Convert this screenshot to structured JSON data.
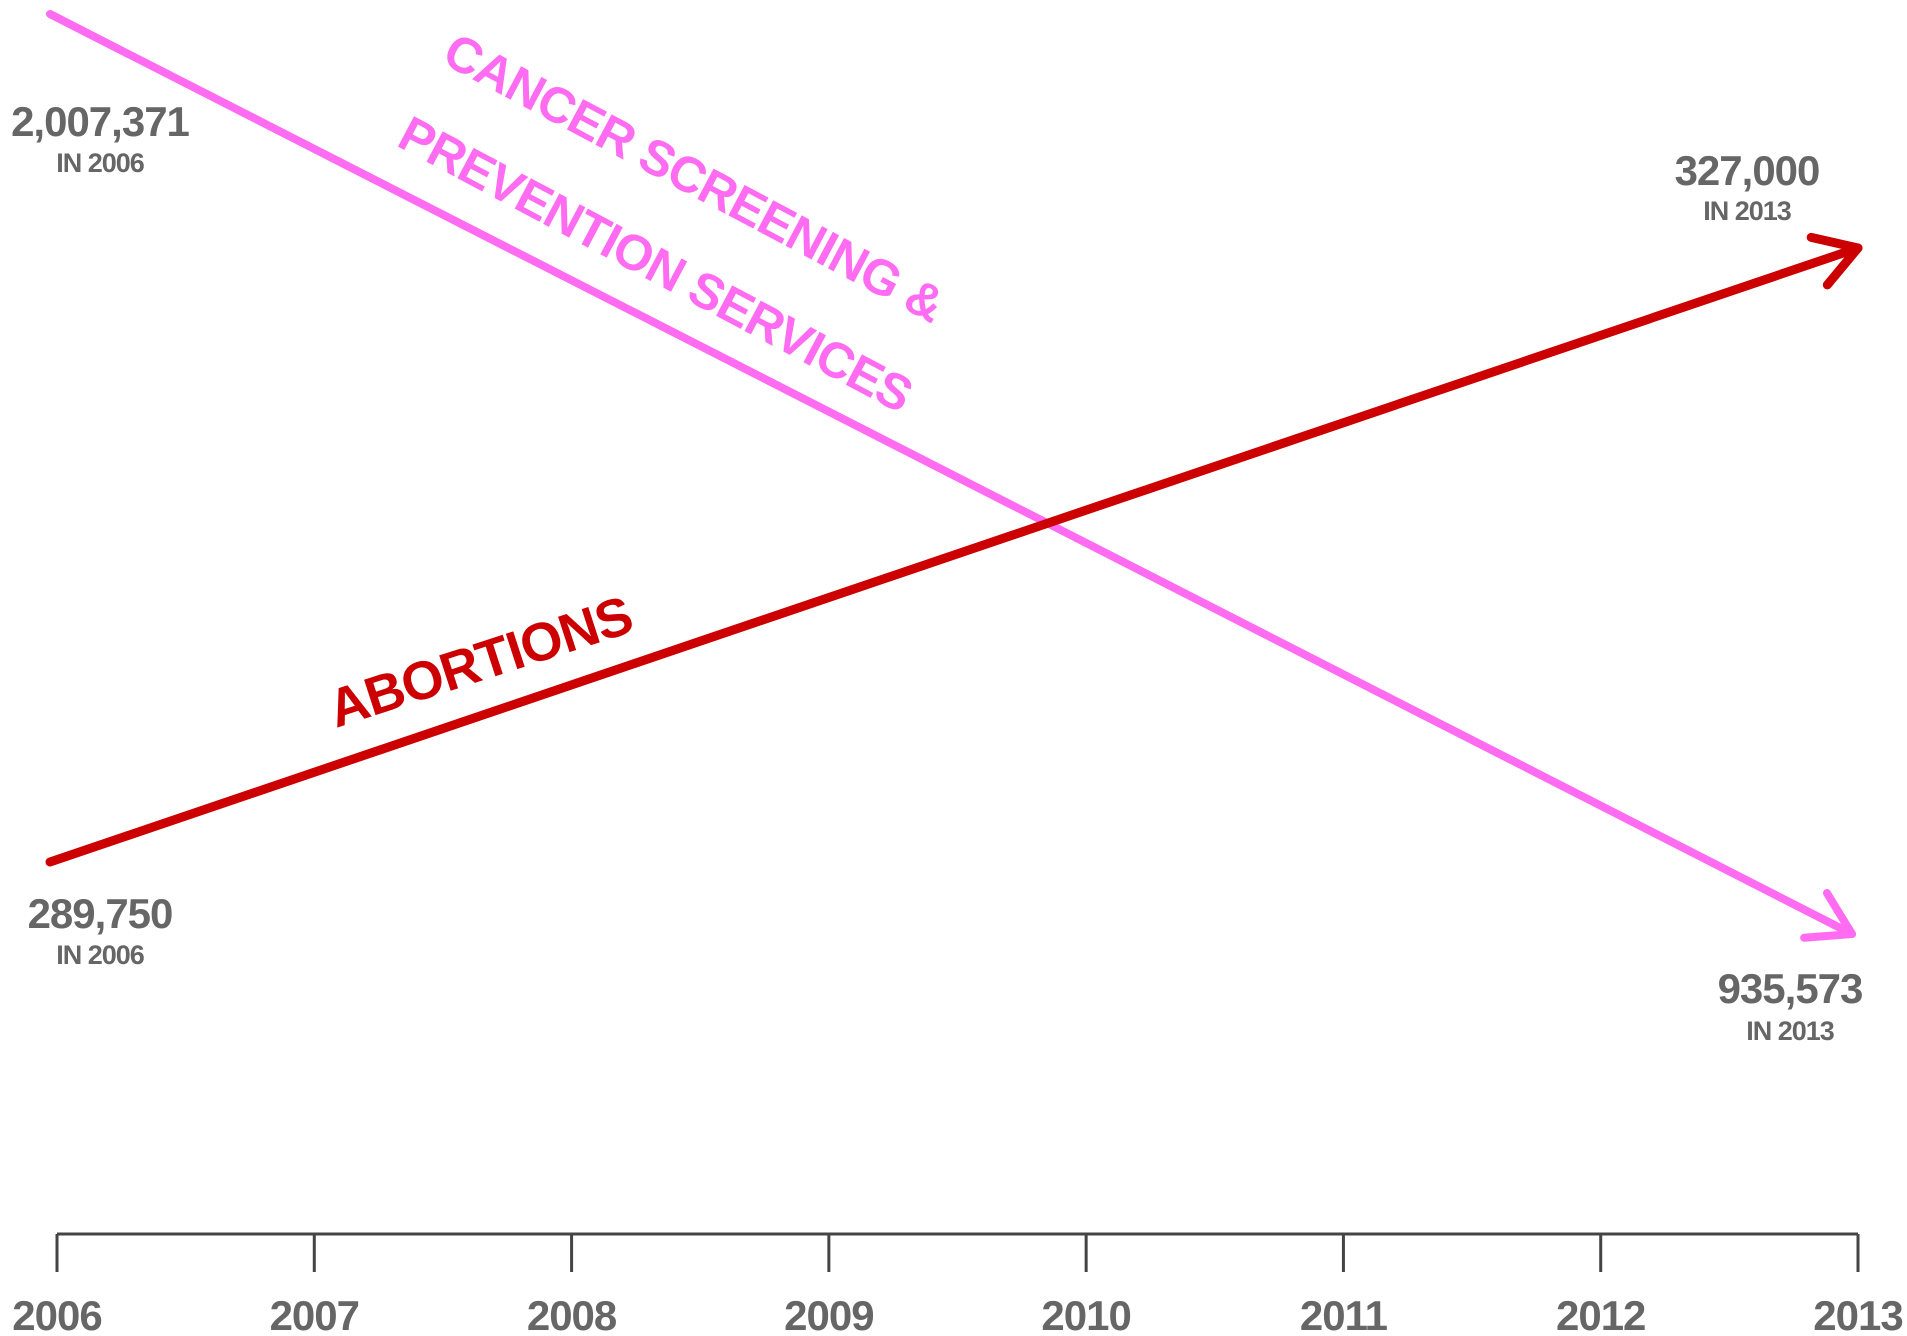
{
  "chart_data": {
    "type": "line",
    "x": [
      2006,
      2013
    ],
    "x_ticks": [
      "2006",
      "2007",
      "2008",
      "2009",
      "2010",
      "2011",
      "2012",
      "2013"
    ],
    "colors": {
      "cancer": "#ff6cf2",
      "abortions": "#cc0000",
      "text": "#666666",
      "axis": "#444444"
    },
    "series": [
      {
        "name": "CANCER SCREENING & PREVENTION SERVICES",
        "label_line1": "CANCER SCREENING &",
        "label_line2": "PREVENTION SERVICES",
        "values": [
          2007371,
          935573
        ],
        "annotations": [
          {
            "value": "2,007,371",
            "sub": "IN 2006"
          },
          {
            "value": "935,573",
            "sub": "IN 2013"
          }
        ]
      },
      {
        "name": "ABORTIONS",
        "label_line1": "ABORTIONS",
        "values": [
          289750,
          327000
        ],
        "annotations": [
          {
            "value": "289,750",
            "sub": "IN 2006"
          },
          {
            "value": "327,000",
            "sub": "IN 2013"
          }
        ]
      }
    ],
    "xlabel": "",
    "ylabel": "",
    "grid": false,
    "y_axis_shown": false
  }
}
